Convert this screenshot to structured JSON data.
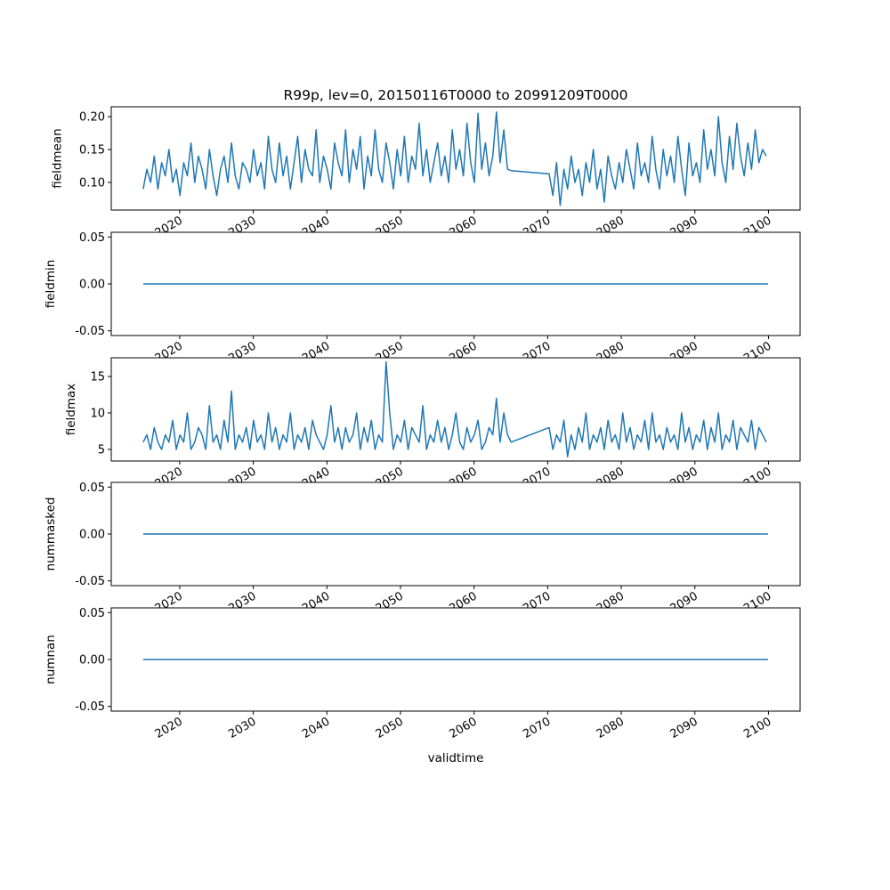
{
  "chart_data": {
    "type": "line",
    "title": "R99p, lev=0, 20150116T0000 to 20991209T0000",
    "xlabel": "validtime",
    "x_ticks": [
      "2020",
      "2030",
      "2040",
      "2050",
      "2060",
      "2070",
      "2080",
      "2090",
      "2100"
    ],
    "xlim": [
      2010.7,
      2104.3
    ],
    "line_color": "#1f77b4",
    "grid": false,
    "subplots": [
      {
        "ylabel": "fieldmean",
        "ylim": [
          0.058,
          0.215
        ],
        "y_ticks": [
          "0.10",
          "0.15",
          "0.20"
        ],
        "y_tick_values": [
          0.1,
          0.15,
          0.2
        ],
        "segments": [
          {
            "x_start": 2015.04,
            "x_step": 0.5,
            "values": [
              0.09,
              0.12,
              0.1,
              0.14,
              0.09,
              0.13,
              0.11,
              0.15,
              0.1,
              0.12,
              0.08,
              0.13,
              0.11,
              0.16,
              0.1,
              0.14,
              0.12,
              0.09,
              0.15,
              0.11,
              0.08,
              0.12,
              0.14,
              0.1,
              0.16,
              0.11,
              0.09,
              0.13,
              0.12,
              0.1,
              0.15,
              0.11,
              0.13,
              0.09,
              0.17,
              0.12,
              0.1,
              0.16,
              0.11,
              0.14,
              0.09,
              0.13,
              0.17,
              0.1,
              0.15,
              0.12,
              0.11,
              0.18,
              0.1,
              0.14,
              0.12,
              0.09,
              0.16,
              0.13,
              0.11,
              0.18,
              0.1,
              0.15,
              0.12,
              0.17,
              0.09,
              0.14,
              0.11,
              0.18,
              0.12,
              0.1,
              0.16,
              0.13,
              0.09,
              0.15,
              0.11,
              0.17,
              0.1,
              0.14,
              0.12,
              0.19,
              0.11,
              0.15,
              0.1,
              0.13,
              0.16,
              0.11,
              0.14,
              0.1,
              0.18,
              0.12,
              0.15,
              0.11,
              0.19,
              0.13,
              0.1,
              0.205,
              0.12,
              0.16,
              0.11,
              0.14,
              0.207,
              0.13,
              0.18,
              0.12,
              0.118
            ]
          },
          {
            "x_start": 2070.2,
            "x_step": 0.5,
            "values": [
              0.113,
              0.08,
              0.13,
              0.065,
              0.12,
              0.09,
              0.14,
              0.1,
              0.12,
              0.08,
              0.13,
              0.1,
              0.15,
              0.09,
              0.12,
              0.07,
              0.14,
              0.11,
              0.09,
              0.13,
              0.1,
              0.15,
              0.12,
              0.09,
              0.16,
              0.11,
              0.13,
              0.1,
              0.17,
              0.12,
              0.09,
              0.15,
              0.11,
              0.14,
              0.1,
              0.17,
              0.12,
              0.08,
              0.16,
              0.11,
              0.13,
              0.1,
              0.18,
              0.12,
              0.15,
              0.11,
              0.2,
              0.13,
              0.1,
              0.17,
              0.12,
              0.19,
              0.14,
              0.11,
              0.16,
              0.12,
              0.18,
              0.13,
              0.15,
              0.14
            ]
          }
        ]
      },
      {
        "ylabel": "fieldmin",
        "ylim": [
          -0.055,
          0.055
        ],
        "y_ticks": [
          "-0.05",
          "0.00",
          "0.05"
        ],
        "y_tick_values": [
          -0.05,
          0,
          0.05
        ],
        "segments": [
          {
            "x_start": 2015.04,
            "x_step": 84.9,
            "values": [
              0,
              0
            ]
          }
        ]
      },
      {
        "ylabel": "fieldmax",
        "ylim": [
          3.41,
          17.56
        ],
        "y_ticks": [
          "5",
          "10",
          "15"
        ],
        "y_tick_values": [
          5,
          10,
          15
        ],
        "segments": [
          {
            "x_start": 2015.04,
            "x_step": 0.5,
            "values": [
              6,
              7,
              5,
              8,
              6,
              5,
              7,
              6,
              9,
              5,
              7,
              6,
              10,
              5,
              6,
              8,
              7,
              5,
              11,
              6,
              7,
              5,
              9,
              6,
              13,
              5,
              7,
              6,
              8,
              5,
              9,
              6,
              7,
              5,
              10,
              6,
              8,
              5,
              7,
              6,
              10,
              5,
              7,
              6,
              8,
              5,
              9,
              7,
              6,
              5,
              7,
              11,
              6,
              8,
              5,
              8,
              6,
              7,
              10,
              5,
              8,
              6,
              9,
              5,
              7,
              6,
              17,
              10,
              5,
              7,
              6,
              9,
              5,
              8,
              7,
              6,
              11,
              5,
              7,
              6,
              9,
              6,
              8,
              5,
              7,
              10,
              6,
              5,
              8,
              6,
              7,
              9,
              5,
              6,
              8,
              7,
              12,
              6,
              10,
              7,
              6
            ]
          },
          {
            "x_start": 2070.2,
            "x_step": 0.5,
            "values": [
              8,
              5,
              7,
              6,
              9,
              4,
              7,
              5,
              8,
              6,
              10,
              5,
              7,
              6,
              8,
              5,
              9,
              6,
              7,
              5,
              10,
              6,
              8,
              5,
              7,
              6,
              9,
              5,
              10,
              6,
              7,
              5,
              8,
              6,
              7,
              5,
              10,
              6,
              8,
              5,
              7,
              6,
              9,
              5,
              8,
              6,
              10,
              5,
              7,
              6,
              9,
              5,
              8,
              7,
              6,
              9,
              5,
              8,
              7,
              6
            ]
          }
        ]
      },
      {
        "ylabel": "nummasked",
        "ylim": [
          -0.055,
          0.055
        ],
        "y_ticks": [
          "-0.05",
          "0.00",
          "0.05"
        ],
        "y_tick_values": [
          -0.05,
          0,
          0.05
        ],
        "segments": [
          {
            "x_start": 2015.04,
            "x_step": 84.9,
            "values": [
              0,
              0
            ]
          }
        ]
      },
      {
        "ylabel": "numnan",
        "ylim": [
          -0.055,
          0.055
        ],
        "y_ticks": [
          "-0.05",
          "0.00",
          "0.05"
        ],
        "y_tick_values": [
          -0.05,
          0,
          0.05
        ],
        "segments": [
          {
            "x_start": 2015.04,
            "x_step": 84.9,
            "values": [
              0,
              0
            ]
          }
        ]
      }
    ]
  }
}
